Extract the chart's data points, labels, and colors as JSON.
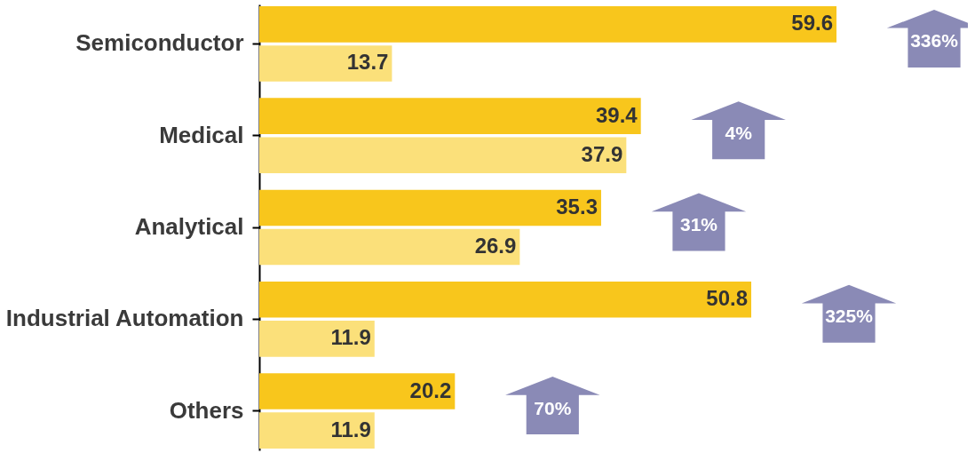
{
  "chart_data": {
    "type": "bar",
    "orientation": "horizontal",
    "categories": [
      "Semiconductor",
      "Medical",
      "Analytical",
      "Industrial Automation",
      "Others"
    ],
    "series": [
      {
        "color": "#f8c61c",
        "values": [
          59.6,
          39.4,
          35.3,
          50.8,
          20.2
        ]
      },
      {
        "color": "#fbe07a",
        "values": [
          13.7,
          37.9,
          26.9,
          11.9,
          11.9
        ]
      }
    ],
    "data_labels": true,
    "legend": false,
    "grid": false,
    "annotations": [
      "336%",
      "4%",
      "31%",
      "325%",
      "70%"
    ]
  }
}
